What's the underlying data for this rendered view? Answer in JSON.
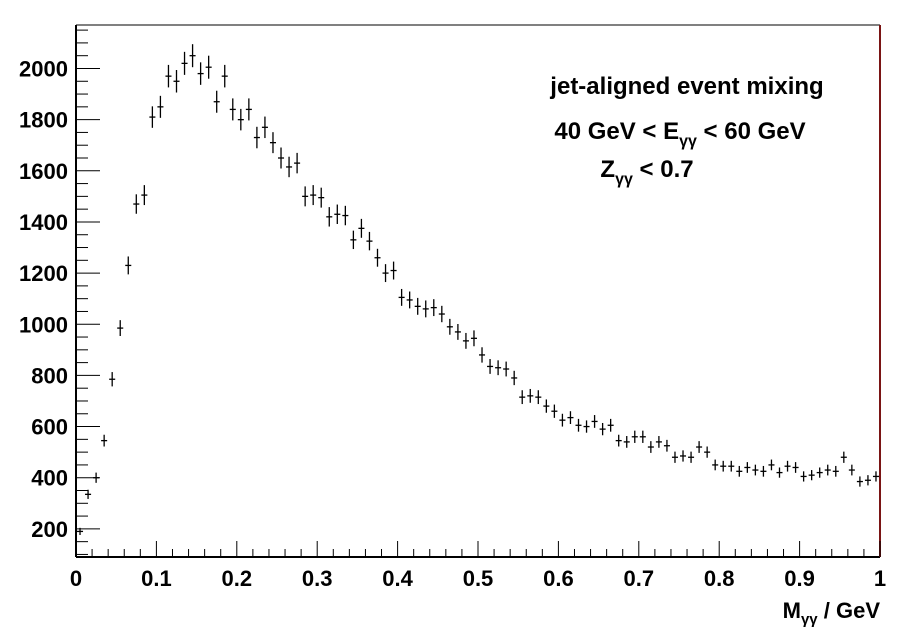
{
  "chart_data": {
    "type": "scatter",
    "style": "points-with-error-bars",
    "xlabel": {
      "main": "M",
      "sub": "γγ",
      "tail": " / GeV"
    },
    "ylabel": "",
    "xlim": [
      0,
      1
    ],
    "ylim": [
      90,
      2170
    ],
    "grid": false,
    "legend": "none",
    "x_ticks": [
      0,
      0.1,
      0.2,
      0.3,
      0.4,
      0.5,
      0.6,
      0.7,
      0.8,
      0.9,
      1
    ],
    "x_tick_labels": [
      "0",
      "0.1",
      "0.2",
      "0.3",
      "0.4",
      "0.5",
      "0.6",
      "0.7",
      "0.8",
      "0.9",
      "1"
    ],
    "y_ticks": [
      200,
      400,
      600,
      800,
      1000,
      1200,
      1400,
      1600,
      1800,
      2000
    ],
    "y_tick_labels": [
      "200",
      "400",
      "600",
      "800",
      "1000",
      "1200",
      "1400",
      "1600",
      "1800",
      "2000"
    ],
    "annotations": [
      [
        {
          "t": "jet-aligned event mixing"
        }
      ],
      [
        {
          "t": "40 GeV < E"
        },
        {
          "t": "γγ",
          "sub": true
        },
        {
          "t": " < 60 GeV"
        }
      ],
      [
        {
          "t": "Z"
        },
        {
          "t": "γγ",
          "sub": true
        },
        {
          "t": " < 0.7"
        }
      ]
    ],
    "bin_width": 0.01,
    "x": [
      0.005,
      0.015,
      0.025,
      0.035,
      0.045,
      0.055,
      0.065,
      0.075,
      0.085,
      0.095,
      0.105,
      0.115,
      0.125,
      0.135,
      0.145,
      0.155,
      0.165,
      0.175,
      0.185,
      0.195,
      0.205,
      0.215,
      0.225,
      0.235,
      0.245,
      0.255,
      0.265,
      0.275,
      0.285,
      0.295,
      0.305,
      0.315,
      0.325,
      0.335,
      0.345,
      0.355,
      0.365,
      0.375,
      0.385,
      0.395,
      0.405,
      0.415,
      0.425,
      0.435,
      0.445,
      0.455,
      0.465,
      0.475,
      0.485,
      0.495,
      0.505,
      0.515,
      0.525,
      0.535,
      0.545,
      0.555,
      0.565,
      0.575,
      0.585,
      0.595,
      0.605,
      0.615,
      0.625,
      0.635,
      0.645,
      0.655,
      0.665,
      0.675,
      0.685,
      0.695,
      0.705,
      0.715,
      0.725,
      0.735,
      0.745,
      0.755,
      0.765,
      0.775,
      0.785,
      0.795,
      0.805,
      0.815,
      0.825,
      0.835,
      0.845,
      0.855,
      0.865,
      0.875,
      0.885,
      0.895,
      0.905,
      0.915,
      0.925,
      0.935,
      0.945,
      0.955,
      0.965,
      0.975,
      0.985,
      0.995
    ],
    "y": [
      190,
      335,
      400,
      545,
      785,
      985,
      1230,
      1470,
      1505,
      1810,
      1850,
      1970,
      1950,
      2020,
      2050,
      1980,
      2005,
      1870,
      1970,
      1840,
      1800,
      1840,
      1730,
      1770,
      1710,
      1650,
      1615,
      1630,
      1500,
      1505,
      1495,
      1420,
      1430,
      1425,
      1330,
      1375,
      1325,
      1260,
      1200,
      1210,
      1105,
      1095,
      1070,
      1060,
      1065,
      1040,
      990,
      970,
      935,
      945,
      880,
      835,
      830,
      825,
      790,
      715,
      720,
      715,
      680,
      660,
      625,
      635,
      605,
      600,
      620,
      590,
      605,
      545,
      540,
      560,
      560,
      520,
      540,
      525,
      480,
      485,
      480,
      520,
      500,
      450,
      445,
      445,
      425,
      440,
      430,
      425,
      450,
      420,
      445,
      440,
      405,
      410,
      420,
      430,
      425,
      480,
      430,
      385,
      390,
      405
    ],
    "y_err": [
      14,
      18,
      20,
      23,
      28,
      31,
      35,
      38,
      39,
      42,
      43,
      44,
      44,
      45,
      45,
      44,
      45,
      43,
      44,
      43,
      42,
      43,
      42,
      42,
      41,
      41,
      40,
      40,
      39,
      39,
      39,
      38,
      38,
      38,
      36,
      37,
      36,
      35,
      35,
      35,
      33,
      33,
      33,
      33,
      33,
      32,
      31,
      31,
      31,
      31,
      30,
      29,
      29,
      29,
      28,
      27,
      27,
      27,
      26,
      26,
      25,
      25,
      25,
      24,
      25,
      24,
      25,
      23,
      23,
      24,
      24,
      23,
      23,
      23,
      22,
      22,
      22,
      23,
      22,
      21,
      21,
      21,
      21,
      21,
      21,
      21,
      21,
      20,
      21,
      21,
      20,
      20,
      20,
      21,
      21,
      22,
      21,
      20,
      20,
      20
    ]
  }
}
